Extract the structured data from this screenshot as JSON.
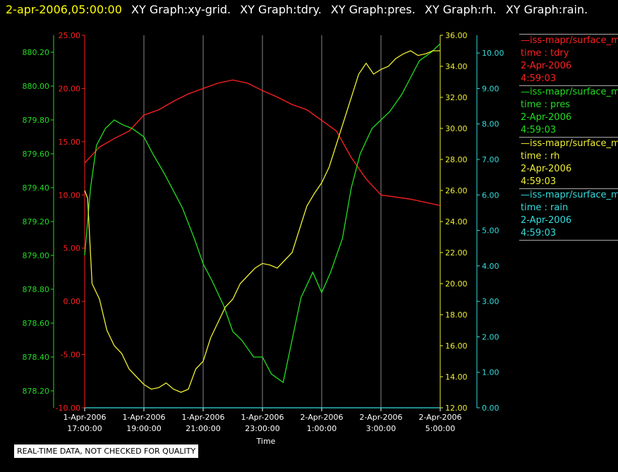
{
  "header": {
    "time": "2-apr-2006,05:00:00",
    "graphs": [
      "XY Graph:xy-grid.",
      "XY Graph:tdry.",
      "XY Graph:pres.",
      "XY Graph:rh.",
      "XY Graph:rain."
    ]
  },
  "notice": "REAL-TIME DATA, NOT CHECKED FOR QUALITY",
  "colors": {
    "tdry": "#ff2020",
    "pres": "#22dd22",
    "rh": "#eeee33",
    "rain": "#33dddd",
    "title_time": "#ffff00"
  },
  "chart_data": {
    "type": "line",
    "xlabel": "Time",
    "x_ticks": [
      {
        "l1": "1-Apr-2006",
        "l2": "17:00:00"
      },
      {
        "l1": "1-Apr-2006",
        "l2": "19:00:00"
      },
      {
        "l1": "1-Apr-2006",
        "l2": "21:00:00"
      },
      {
        "l1": "1-Apr-2006",
        "l2": "23:00:00"
      },
      {
        "l1": "2-Apr-2006",
        "l2": "1:00:00"
      },
      {
        "l1": "2-Apr-2006",
        "l2": "3:00:00"
      },
      {
        "l1": "2-Apr-2006",
        "l2": "5:00:00"
      }
    ],
    "xlim": [
      "1-Apr-2006 17:00:00",
      "2-Apr-2006 5:00:00"
    ],
    "grid": true,
    "axes": {
      "tdry": {
        "ylim": [
          -10,
          25
        ],
        "ticks": [
          "25.00",
          "20.00",
          "15.00",
          "10.00",
          "5.00",
          "0.00",
          "-5.00",
          "-10.00"
        ]
      },
      "pres": {
        "ylim": [
          878.1,
          880.3
        ],
        "ticks": [
          "880.20",
          "880.00",
          "879.80",
          "879.60",
          "879.40",
          "879.20",
          "879.00",
          "878.80",
          "878.60",
          "878.40",
          "878.20"
        ]
      },
      "rh": {
        "ylim": [
          12,
          36
        ],
        "ticks": [
          "36.00",
          "34.00",
          "32.00",
          "30.00",
          "28.00",
          "26.00",
          "24.00",
          "22.00",
          "20.00",
          "18.00",
          "16.00",
          "14.00",
          "12.00"
        ]
      },
      "rain": {
        "ylim": [
          0,
          10.5
        ],
        "ticks": [
          "10.00",
          "9.00",
          "8.00",
          "7.00",
          "6.00",
          "5.00",
          "4.00",
          "3.00",
          "2.00",
          "1.00",
          "0.00"
        ]
      }
    },
    "series": [
      {
        "key": "tdry",
        "x_hours": [
          0,
          0.5,
          1,
          1.5,
          2,
          2.5,
          3,
          3.5,
          4,
          4.5,
          5,
          5.5,
          6,
          6.5,
          7,
          7.5,
          8,
          8.5,
          9,
          9.5,
          10,
          10.5,
          11,
          11.5,
          12
        ],
        "values": [
          13,
          14.5,
          15.3,
          16,
          17.5,
          18,
          18.8,
          19.5,
          20,
          20.5,
          20.8,
          20.5,
          19.8,
          19.2,
          18.5,
          18,
          17,
          16,
          13.5,
          11.5,
          10,
          9.8,
          9.6,
          9.3,
          9
        ]
      },
      {
        "key": "pres",
        "x_hours": [
          0,
          0.2,
          0.4,
          0.7,
          1,
          1.3,
          1.6,
          2,
          2.3,
          2.7,
          3,
          3.3,
          3.7,
          4,
          4.3,
          4.7,
          5,
          5.3,
          5.7,
          6,
          6.3,
          6.7,
          7,
          7.3,
          7.7,
          8,
          8.3,
          8.7,
          9,
          9.3,
          9.7,
          10,
          10.3,
          10.7,
          11,
          11.3,
          11.7,
          12
        ],
        "values": [
          879.0,
          879.4,
          879.65,
          879.75,
          879.8,
          879.77,
          879.75,
          879.7,
          879.6,
          879.48,
          879.38,
          879.28,
          879.1,
          878.95,
          878.85,
          878.7,
          878.55,
          878.5,
          878.4,
          878.4,
          878.3,
          878.25,
          878.5,
          878.75,
          878.9,
          878.78,
          878.9,
          879.1,
          879.4,
          879.6,
          879.75,
          879.8,
          879.85,
          879.95,
          880.05,
          880.15,
          880.2,
          880.25
        ]
      },
      {
        "key": "rh",
        "x_hours": [
          0,
          0.1,
          0.25,
          0.5,
          0.75,
          1,
          1.25,
          1.5,
          1.75,
          2,
          2.25,
          2.5,
          2.75,
          3,
          3.25,
          3.5,
          3.75,
          4,
          4.25,
          4.5,
          4.75,
          5,
          5.25,
          5.5,
          5.75,
          6,
          6.25,
          6.5,
          6.75,
          7,
          7.25,
          7.5,
          7.75,
          8,
          8.25,
          8.5,
          8.75,
          9,
          9.25,
          9.5,
          9.75,
          10,
          10.25,
          10.5,
          10.75,
          11,
          11.25,
          11.5,
          11.75,
          12
        ],
        "values": [
          26,
          25.5,
          20,
          19,
          17,
          16,
          15.5,
          14.5,
          14,
          13.5,
          13.2,
          13.3,
          13.6,
          13.2,
          13,
          13.2,
          14.5,
          15,
          16.5,
          17.5,
          18.5,
          19,
          20,
          20.5,
          21,
          21.3,
          21.2,
          21,
          21.5,
          22,
          23.5,
          25,
          25.8,
          26.5,
          27.5,
          29,
          30.5,
          32,
          33.5,
          34.2,
          33.5,
          33.8,
          34,
          34.5,
          34.8,
          35,
          34.7,
          34.8,
          35,
          35
        ]
      },
      {
        "key": "rain",
        "x_hours": [
          0,
          12
        ],
        "values": [
          0,
          0
        ]
      }
    ]
  }
}
